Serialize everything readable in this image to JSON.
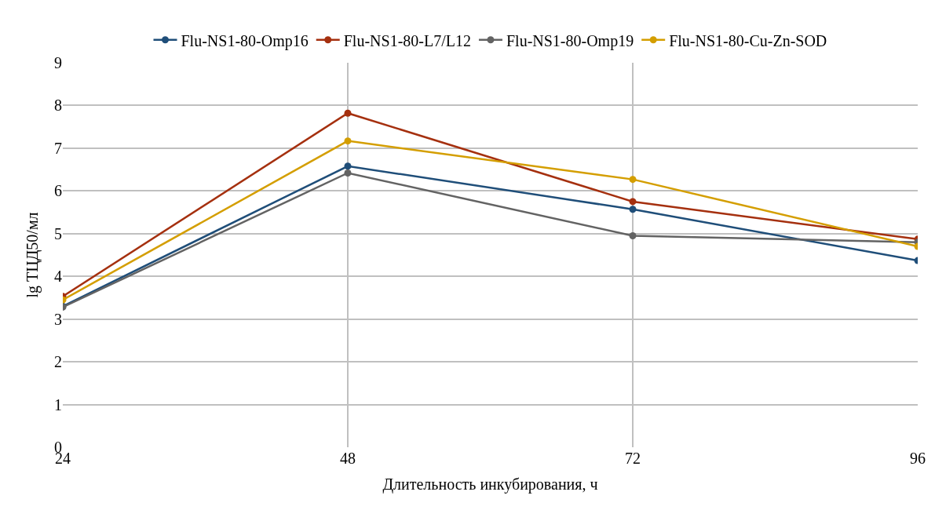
{
  "chart_data": {
    "type": "line",
    "xlabel": "Длительность инкубирования, ч",
    "ylabel": "lg ТЦД50/мл",
    "x": [
      24,
      48,
      72,
      96
    ],
    "xlim": [
      24,
      96
    ],
    "xticks": [
      24,
      48,
      72,
      96
    ],
    "ylim": [
      0,
      9
    ],
    "yticks": [
      0,
      1,
      2,
      3,
      4,
      5,
      6,
      7,
      8,
      9
    ],
    "grid": true,
    "legend": "top",
    "marker": "circle",
    "line_style": "solid",
    "series": [
      {
        "name": "Flu-NS1-80-Omp16",
        "color": "#1f4e79",
        "values": [
          3.3,
          6.58,
          5.57,
          4.37
        ]
      },
      {
        "name": "Flu-NS1-80-L7/L12",
        "color": "#a5300f",
        "values": [
          3.53,
          7.82,
          5.75,
          4.87
        ]
      },
      {
        "name": "Flu-NS1-80-Omp19",
        "color": "#636363",
        "values": [
          3.28,
          6.42,
          4.95,
          4.8
        ]
      },
      {
        "name": "Flu-NS1-80-Cu-Zn-SOD",
        "color": "#d49e00",
        "values": [
          3.45,
          7.17,
          6.27,
          4.7
        ]
      }
    ]
  }
}
